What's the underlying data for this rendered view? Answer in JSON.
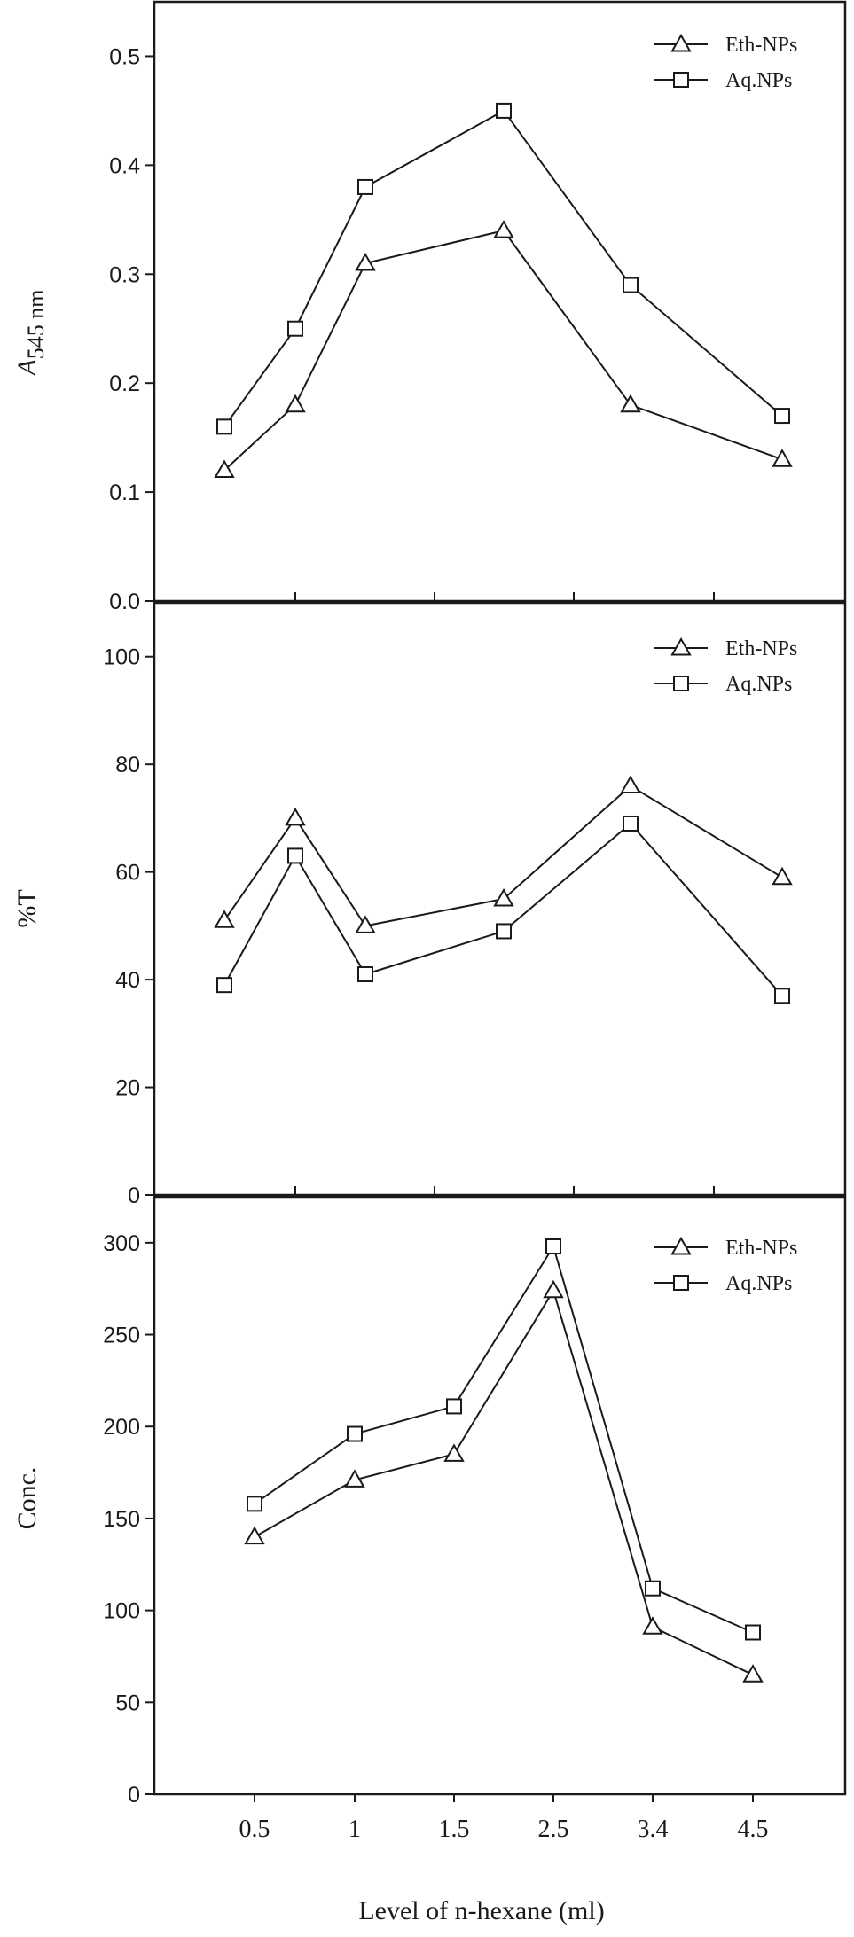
{
  "chart_data": [
    {
      "type": "line",
      "ylabel_italic": "A",
      "ylabel_sub": "545 nm",
      "ylim": [
        0,
        0.55
      ],
      "yticks": [
        "0.0",
        "0.1",
        "0.2",
        "0.3",
        "0.4",
        "0.5"
      ],
      "legend_position": "top-right",
      "series": [
        {
          "name": "Eth-NPs",
          "marker": "triangle",
          "values": [
            0.12,
            0.18,
            0.31,
            0.34,
            0.18,
            0.13
          ]
        },
        {
          "name": "Aq.NPs",
          "marker": "square",
          "values": [
            0.16,
            0.25,
            0.38,
            0.45,
            0.29,
            0.17
          ]
        }
      ]
    },
    {
      "type": "line",
      "ylabel": "%T",
      "ylim": [
        0,
        110
      ],
      "yticks": [
        "0",
        "20",
        "40",
        "60",
        "80",
        "100"
      ],
      "legend_position": "top-right",
      "series": [
        {
          "name": "Eth-NPs",
          "marker": "triangle",
          "values": [
            51,
            70,
            50,
            55,
            76,
            59
          ]
        },
        {
          "name": "Aq.NPs",
          "marker": "square",
          "values": [
            39,
            63,
            41,
            49,
            69,
            37
          ]
        }
      ]
    },
    {
      "type": "line",
      "ylabel": "Conc.",
      "xlabel": "Level of n-hexane (ml)",
      "categories": [
        "0.5",
        "1",
        "1.5",
        "2.5",
        "3.4",
        "4.5"
      ],
      "ylim": [
        0,
        325
      ],
      "yticks": [
        "0",
        "50",
        "100",
        "150",
        "200",
        "250",
        "300"
      ],
      "legend_position": "top-right",
      "series": [
        {
          "name": "Eth-NPs",
          "marker": "triangle",
          "values": [
            140,
            171,
            185,
            274,
            91,
            65
          ]
        },
        {
          "name": "Aq.NPs",
          "marker": "square",
          "values": [
            158,
            196,
            211,
            298,
            112,
            88
          ]
        }
      ]
    }
  ]
}
